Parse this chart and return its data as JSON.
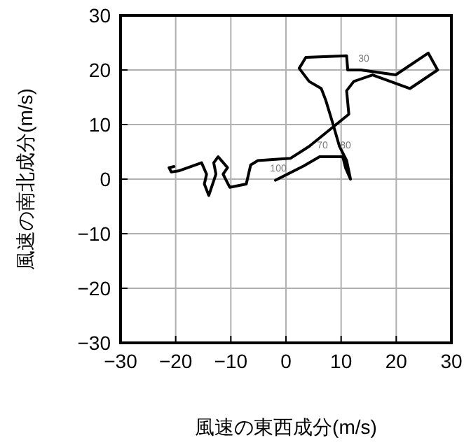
{
  "chart_data": {
    "type": "line",
    "xlabel": "風速の東西成分(m/s)",
    "ylabel": "風速の南北成分(m/s)",
    "xlim": [
      -30,
      30
    ],
    "ylim": [
      -30,
      30
    ],
    "xticks": [
      -30,
      -20,
      -10,
      0,
      10,
      20,
      30
    ],
    "yticks": [
      -30,
      -20,
      -10,
      0,
      10,
      20,
      30
    ],
    "grid": true,
    "series": [
      {
        "color": "#000000",
        "x": [
          -1.9,
          3.2,
          6.1,
          10.3,
          10.8,
          11.7,
          11.0,
          9.7,
          8.5,
          7.2,
          6.4,
          4.2,
          2.4,
          3.6,
          11.0,
          11.2,
          13.6,
          19.9,
          25.8,
          27.5,
          22.5,
          15.7,
          12.3,
          11.0,
          11.4,
          4.2,
          0.8,
          -5.1,
          -6.4,
          -7.2,
          -10.2,
          -11.4,
          -10.6,
          -12.3,
          -13.1,
          -12.7,
          -14.0,
          -14.8,
          -14.4,
          -15.3,
          -19.5,
          -20.8,
          -21.2,
          -20.3
        ],
        "values": [
          -0.2,
          2.4,
          4.1,
          4.1,
          2.1,
          0,
          3.4,
          6.0,
          10.2,
          14.5,
          16.6,
          17.9,
          20.3,
          22.3,
          22.6,
          20.0,
          20.0,
          19.1,
          23.1,
          20.0,
          16.6,
          19.1,
          17.9,
          16.2,
          11.9,
          6.0,
          3.8,
          3.4,
          2.6,
          -0.9,
          -1.5,
          0.9,
          2.1,
          4.1,
          3.0,
          0.9,
          -3.0,
          -0.9,
          0.9,
          3.0,
          1.5,
          1.3,
          2.1,
          2.3
        ]
      }
    ],
    "annotations": [
      {
        "text": "30",
        "x": 13.6,
        "y": 20.0
      },
      {
        "text": "70",
        "x": 6.1,
        "y": 4.1
      },
      {
        "text": "80",
        "x": 10.3,
        "y": 4.1
      },
      {
        "text": "100",
        "x": -1.9,
        "y": -0.2
      }
    ]
  }
}
